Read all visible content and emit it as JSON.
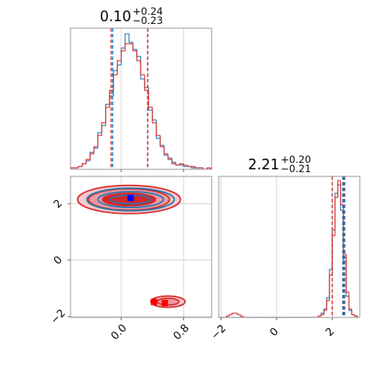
{
  "chart_data": [
    {
      "type": "histogram",
      "title": "0.10",
      "title_upper": "+0.24",
      "title_lower": "−0.23",
      "xlim": [
        -0.65,
        1.16
      ],
      "ylim": [
        0,
        100
      ],
      "xticks": [
        {
          "value": 0,
          "label": "0.0"
        },
        0.8
      ],
      "bins": [
        -0.65,
        -0.6,
        -0.55,
        -0.5,
        -0.45,
        -0.4,
        -0.35,
        -0.3,
        -0.25,
        -0.2,
        -0.15,
        -0.1,
        -0.05,
        0,
        0.05,
        0.1,
        0.15,
        0.2,
        0.25,
        0.3,
        0.35,
        0.4,
        0.45,
        0.5,
        0.55,
        0.6,
        0.65,
        0.7,
        0.75,
        0.8,
        0.85,
        0.9,
        0.95,
        1.0,
        1.05,
        1.1,
        1.15
      ],
      "series": [
        {
          "color": "#1f77b4",
          "values": [
            1,
            1,
            2,
            4,
            6,
            12,
            15,
            26,
            31,
            46,
            52,
            70,
            74,
            86,
            96,
            90,
            85,
            80,
            64,
            58,
            42,
            35,
            22,
            17,
            10,
            8,
            5,
            3,
            3,
            2,
            2,
            1,
            1,
            1,
            0,
            0
          ],
          "quantiles": [
            -0.11,
            0.34
          ]
        },
        {
          "color": "#d62728",
          "values": [
            1,
            1,
            2,
            4,
            7,
            11,
            16,
            24,
            33,
            44,
            56,
            67,
            77,
            84,
            89,
            89,
            84,
            77,
            67,
            56,
            44,
            33,
            24,
            16,
            11,
            7,
            4,
            3,
            4,
            3,
            2,
            2,
            1,
            1,
            0,
            1
          ],
          "quantiles": [
            -0.13,
            0.34
          ]
        }
      ]
    },
    {
      "type": "contour",
      "xlim": [
        -0.65,
        1.16
      ],
      "ylim": [
        -2.03,
        2.97
      ],
      "xticks": [
        {
          "value": 0,
          "label": "0.0"
        },
        0.8
      ],
      "yticks": [
        {
          "value": -2,
          "label": "−2"
        },
        0,
        2
      ],
      "series": [
        {
          "color": "#d62728",
          "fill": [
            "#f6c9cc",
            "#ee9aa0",
            "#d62728"
          ],
          "contours": [
            {
              "center": [
                0.1,
                2.15
              ],
              "rx": [
                0.66,
                0.52,
                0.34
              ],
              "ry": [
                0.5,
                0.38,
                0.22
              ]
            },
            {
              "center": [
                0.6,
                -1.47
              ],
              "rx": [
                0.22,
                0.14
              ],
              "ry": [
                0.2,
                0.12
              ]
            }
          ]
        },
        {
          "color": "#1f77b4",
          "fill": [
            "none",
            "none",
            "none"
          ],
          "contours": [
            {
              "center": [
                0.12,
                2.15
              ],
              "rx": [
                0.56,
                0.42,
                0.26
              ],
              "ry": [
                0.4,
                0.28,
                0.15
              ]
            }
          ]
        }
      ],
      "markers": [
        {
          "color": "#0000ff",
          "x": [
            0.12
          ],
          "y": [
            2.2
          ]
        },
        {
          "color": "#ff0000",
          "x": [
            0.42,
            0.56
          ],
          "y": [
            -1.48,
            -1.52
          ]
        }
      ]
    },
    {
      "type": "histogram",
      "title": "2.21",
      "title_upper": "+0.20",
      "title_lower": "−0.21",
      "xlim": [
        -2.08,
        2.99
      ],
      "ylim": [
        0,
        100
      ],
      "xticks": [
        {
          "value": -2,
          "label": "−2"
        },
        0,
        2
      ],
      "bins": [
        -2.1,
        -2.0,
        -1.9,
        -1.8,
        -1.7,
        -1.6,
        -1.5,
        -1.4,
        -1.3,
        -1.2,
        -1.1,
        -1.0,
        -0.9,
        -0.8,
        -0.7,
        -0.6,
        -0.5,
        -0.4,
        -0.3,
        -0.2,
        -0.1,
        0,
        0.1,
        0.2,
        0.3,
        0.4,
        0.5,
        0.6,
        0.7,
        0.8,
        0.9,
        1.0,
        1.1,
        1.2,
        1.3,
        1.4,
        1.5,
        1.6,
        1.7,
        1.8,
        1.9,
        2.0,
        2.1,
        2.2,
        2.3,
        2.4,
        2.5,
        2.6,
        2.7,
        2.8,
        2.9
      ],
      "series": [
        {
          "color": "#1f77b4",
          "values": [
            0,
            0,
            0,
            0,
            0,
            0,
            0,
            0,
            0,
            0,
            0,
            0,
            0,
            0,
            0,
            0,
            0,
            0,
            0,
            0,
            0,
            0,
            0,
            0,
            0,
            0,
            0,
            0,
            0,
            0,
            0,
            0,
            0,
            0,
            0,
            0,
            1,
            3,
            6,
            14,
            34,
            62,
            88,
            94,
            76,
            40,
            15,
            5,
            2,
            1
          ],
          "quantiles": [
            2.38,
            2.45
          ]
        },
        {
          "color": "#d62728",
          "values": [
            0,
            0,
            0,
            1,
            2,
            3,
            3,
            2,
            1,
            0,
            0,
            0,
            0,
            0,
            0,
            0,
            0,
            0,
            0,
            0,
            0,
            0,
            0,
            0,
            0,
            0,
            0,
            0,
            0,
            0,
            0,
            0,
            0,
            0,
            0,
            0,
            1,
            2,
            5,
            12,
            30,
            58,
            85,
            97,
            80,
            45,
            18,
            6,
            2,
            1
          ],
          "quantiles": [
            2.0,
            2.41
          ]
        }
      ]
    }
  ]
}
